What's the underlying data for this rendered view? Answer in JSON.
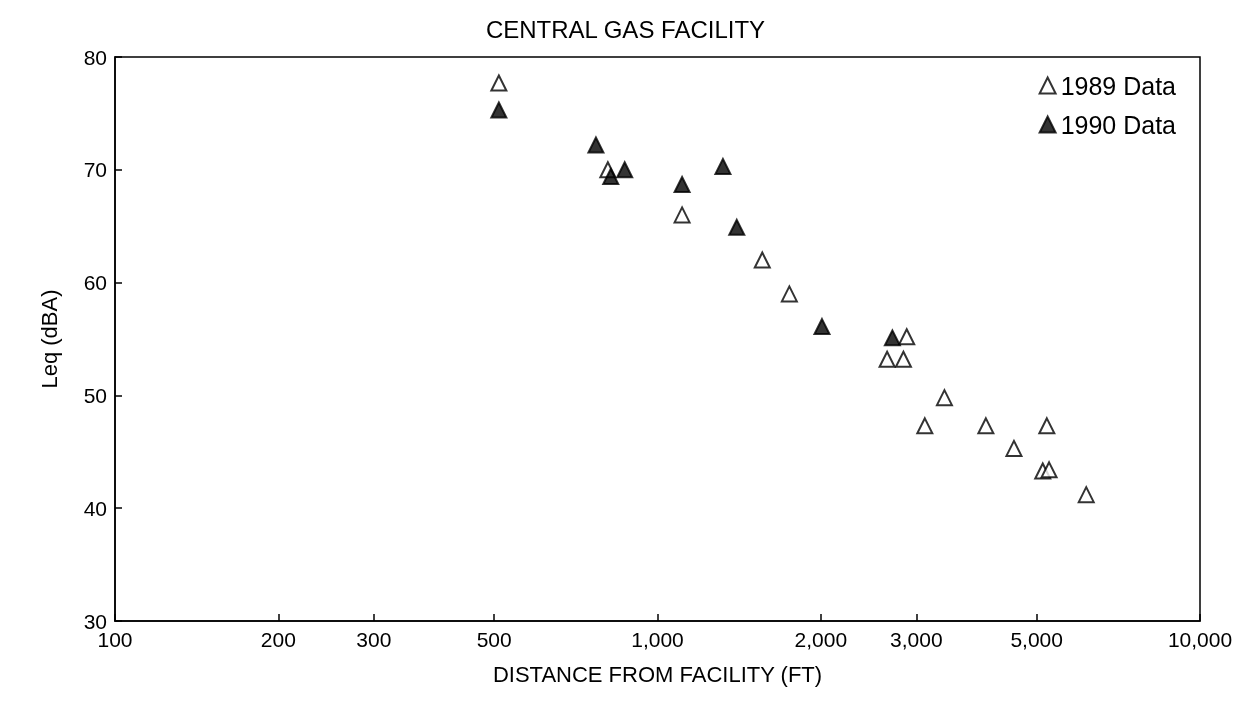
{
  "chart_data": {
    "type": "scatter",
    "title": "CENTRAL GAS FACILITY",
    "xlabel": "DISTANCE FROM FACILITY (FT)",
    "ylabel": "Leq (dBA)",
    "log": "x",
    "marker": "triangle",
    "legend": "top right",
    "grid": false,
    "xlim": [
      100,
      10000
    ],
    "xticks": [
      100,
      200,
      300,
      500,
      {
        "value": 1000,
        "label": "1,000"
      },
      {
        "value": 2000,
        "label": "2,000"
      },
      {
        "value": 3000,
        "label": "3,000"
      },
      {
        "value": 5000,
        "label": "5,000"
      },
      {
        "value": 10000,
        "label": "10,000"
      }
    ],
    "ylim": [
      30,
      80
    ],
    "yticks": [
      30,
      40,
      50,
      60,
      70,
      80
    ],
    "series": [
      {
        "name": "1989 Data",
        "color": "#ffffff",
        "x": [
          510,
          810,
          1110,
          1560,
          1750,
          2650,
          2840,
          2880,
          3380,
          3110,
          4030,
          5220,
          4540,
          5130,
          5270,
          6170
        ],
        "values": [
          77.7,
          70,
          66,
          62,
          59,
          53.2,
          53.2,
          55.2,
          49.8,
          47.3,
          47.3,
          47.3,
          45.3,
          43.3,
          43.4,
          41.2
        ]
      },
      {
        "name": "1990 Data",
        "color": "#000000",
        "x": [
          510,
          770,
          820,
          870,
          1110,
          1320,
          1400,
          2010,
          2710
        ],
        "values": [
          75.3,
          72.2,
          69.4,
          70,
          68.7,
          70.3,
          64.9,
          56.1,
          55.1
        ]
      }
    ]
  }
}
